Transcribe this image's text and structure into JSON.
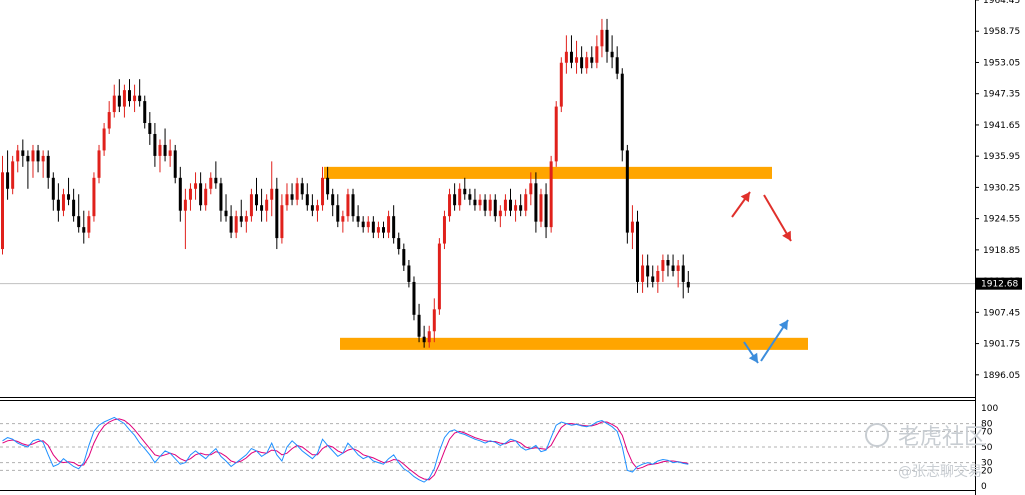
{
  "chart_data": {
    "type": "candlestick",
    "y_axis": {
      "ticks": [
        "1964.45",
        "1958.75",
        "1953.05",
        "1947.35",
        "1941.65",
        "1935.95",
        "1930.25",
        "1924.55",
        "1918.85",
        "1913.15",
        "1907.45",
        "1901.75",
        "1896.05"
      ],
      "range": [
        1892.0,
        1964.45
      ]
    },
    "current_price": {
      "value": 1912.68,
      "label": "1912.68"
    },
    "zones": [
      {
        "name": "resistance",
        "low": 1931.8,
        "high": 1934.0,
        "color": "#FFA500"
      },
      {
        "name": "support",
        "low": 1900.6,
        "high": 1902.8,
        "color": "#FFA500"
      }
    ],
    "candles": [
      [
        1919,
        1936,
        1918,
        1933
      ],
      [
        1933,
        1937,
        1928,
        1930
      ],
      [
        1930,
        1936,
        1929,
        1935
      ],
      [
        1935,
        1938,
        1933,
        1937
      ],
      [
        1937,
        1939,
        1934,
        1936
      ],
      [
        1936,
        1937,
        1930,
        1935
      ],
      [
        1935,
        1938,
        1932,
        1937
      ],
      [
        1937,
        1938,
        1933,
        1935
      ],
      [
        1935,
        1937,
        1932,
        1936
      ],
      [
        1936,
        1937,
        1930,
        1932
      ],
      [
        1932,
        1933,
        1926,
        1928
      ],
      [
        1928,
        1931,
        1924,
        1926
      ],
      [
        1926,
        1930,
        1925,
        1929
      ],
      [
        1929,
        1932,
        1927,
        1928
      ],
      [
        1928,
        1930,
        1924,
        1925
      ],
      [
        1925,
        1929,
        1922,
        1923
      ],
      [
        1923,
        1926,
        1920,
        1922
      ],
      [
        1922,
        1926,
        1921,
        1925
      ],
      [
        1925,
        1933,
        1924,
        1932
      ],
      [
        1932,
        1938,
        1931,
        1937
      ],
      [
        1937,
        1942,
        1936,
        1941
      ],
      [
        1941,
        1946,
        1940,
        1944
      ],
      [
        1944,
        1949,
        1943,
        1947
      ],
      [
        1947,
        1950,
        1944,
        1945
      ],
      [
        1945,
        1949,
        1943,
        1948
      ],
      [
        1948,
        1950,
        1945,
        1946
      ],
      [
        1946,
        1949,
        1944,
        1947
      ],
      [
        1947,
        1950,
        1945,
        1946
      ],
      [
        1946,
        1947,
        1941,
        1942
      ],
      [
        1942,
        1944,
        1938,
        1940
      ],
      [
        1940,
        1942,
        1934,
        1936
      ],
      [
        1936,
        1939,
        1933,
        1938
      ],
      [
        1938,
        1941,
        1935,
        1936
      ],
      [
        1936,
        1939,
        1934,
        1937
      ],
      [
        1937,
        1938,
        1931,
        1932
      ],
      [
        1932,
        1934,
        1924,
        1926
      ],
      [
        1926,
        1930,
        1919,
        1928
      ],
      [
        1928,
        1931,
        1926,
        1930
      ],
      [
        1930,
        1933,
        1928,
        1931
      ],
      [
        1931,
        1933,
        1926,
        1927
      ],
      [
        1927,
        1931,
        1926,
        1930
      ],
      [
        1930,
        1933,
        1929,
        1932
      ],
      [
        1932,
        1935,
        1930,
        1931
      ],
      [
        1931,
        1932,
        1924,
        1926
      ],
      [
        1926,
        1929,
        1924,
        1925
      ],
      [
        1925,
        1927,
        1921,
        1922
      ],
      [
        1922,
        1926,
        1921,
        1925
      ],
      [
        1925,
        1928,
        1923,
        1924
      ],
      [
        1924,
        1926,
        1922,
        1925
      ],
      [
        1925,
        1930,
        1924,
        1929
      ],
      [
        1929,
        1932,
        1926,
        1927
      ],
      [
        1927,
        1930,
        1924,
        1926
      ],
      [
        1926,
        1929,
        1924,
        1928
      ],
      [
        1928,
        1935,
        1925,
        1930
      ],
      [
        1930,
        1932,
        1919,
        1921
      ],
      [
        1921,
        1929,
        1920,
        1927
      ],
      [
        1927,
        1931,
        1926,
        1929
      ],
      [
        1929,
        1931,
        1927,
        1928
      ],
      [
        1928,
        1932,
        1927,
        1931
      ],
      [
        1931,
        1932,
        1928,
        1929
      ],
      [
        1929,
        1931,
        1926,
        1927
      ],
      [
        1927,
        1929,
        1925,
        1926
      ],
      [
        1926,
        1928,
        1924,
        1927
      ],
      [
        1927,
        1934,
        1926,
        1932
      ],
      [
        1932,
        1934,
        1928,
        1929
      ],
      [
        1929,
        1930,
        1925,
        1927
      ],
      [
        1927,
        1929,
        1923,
        1924
      ],
      [
        1924,
        1926,
        1922,
        1925
      ],
      [
        1925,
        1930,
        1924,
        1929
      ],
      [
        1929,
        1930,
        1924,
        1925
      ],
      [
        1925,
        1927,
        1923,
        1924
      ],
      [
        1924,
        1925,
        1922,
        1923
      ],
      [
        1923,
        1925,
        1922,
        1924
      ],
      [
        1924,
        1925,
        1921,
        1922
      ],
      [
        1922,
        1924,
        1921,
        1923
      ],
      [
        1923,
        1924,
        1921,
        1922
      ],
      [
        1922,
        1926,
        1921,
        1925
      ],
      [
        1925,
        1927,
        1920,
        1921
      ],
      [
        1921,
        1922,
        1918,
        1919
      ],
      [
        1919,
        1920,
        1915,
        1916
      ],
      [
        1916,
        1917,
        1912,
        1913
      ],
      [
        1913,
        1914,
        1906,
        1907
      ],
      [
        1907,
        1909,
        1902,
        1903
      ],
      [
        1903,
        1905,
        1901,
        1902
      ],
      [
        1902,
        1905,
        1901,
        1904
      ],
      [
        1904,
        1910,
        1902,
        1908
      ],
      [
        1908,
        1921,
        1907,
        1920
      ],
      [
        1920,
        1926,
        1919,
        1925
      ],
      [
        1925,
        1930,
        1924,
        1929
      ],
      [
        1929,
        1931,
        1926,
        1927
      ],
      [
        1927,
        1931,
        1926,
        1930
      ],
      [
        1930,
        1932,
        1928,
        1929
      ],
      [
        1929,
        1930,
        1927,
        1928
      ],
      [
        1928,
        1930,
        1926,
        1927
      ],
      [
        1927,
        1929,
        1926,
        1928
      ],
      [
        1928,
        1929,
        1925,
        1926
      ],
      [
        1926,
        1929,
        1925,
        1928
      ],
      [
        1928,
        1929,
        1924,
        1925
      ],
      [
        1925,
        1927,
        1923,
        1926
      ],
      [
        1926,
        1929,
        1925,
        1928
      ],
      [
        1928,
        1930,
        1925,
        1926
      ],
      [
        1926,
        1928,
        1924,
        1927
      ],
      [
        1927,
        1929,
        1925,
        1926
      ],
      [
        1926,
        1930,
        1925,
        1929
      ],
      [
        1929,
        1933,
        1927,
        1931
      ],
      [
        1931,
        1933,
        1922,
        1924
      ],
      [
        1924,
        1930,
        1923,
        1929
      ],
      [
        1929,
        1931,
        1921,
        1923
      ],
      [
        1923,
        1936,
        1922,
        1935
      ],
      [
        1935,
        1946,
        1934,
        1945
      ],
      [
        1945,
        1954,
        1944,
        1953
      ],
      [
        1953,
        1958,
        1951,
        1955
      ],
      [
        1955,
        1958,
        1952,
        1953
      ],
      [
        1953,
        1957,
        1951,
        1954
      ],
      [
        1954,
        1956,
        1951,
        1952
      ],
      [
        1952,
        1955,
        1951,
        1954
      ],
      [
        1954,
        1956,
        1952,
        1953
      ],
      [
        1953,
        1958,
        1952,
        1956
      ],
      [
        1956,
        1961,
        1954,
        1959
      ],
      [
        1959,
        1961,
        1953,
        1955
      ],
      [
        1955,
        1958,
        1952,
        1954
      ],
      [
        1954,
        1956,
        1950,
        1951
      ],
      [
        1951,
        1952,
        1935,
        1937
      ],
      [
        1937,
        1938,
        1920,
        1922
      ],
      [
        1922,
        1927,
        1919,
        1924
      ],
      [
        1924,
        1926,
        1911,
        1913
      ],
      [
        1913,
        1918,
        1911,
        1916
      ],
      [
        1916,
        1918,
        1912,
        1914
      ],
      [
        1914,
        1916,
        1912,
        1913
      ],
      [
        1913,
        1916,
        1911,
        1915
      ],
      [
        1915,
        1918,
        1913,
        1917
      ],
      [
        1917,
        1918,
        1914,
        1916
      ],
      [
        1916,
        1918,
        1914,
        1915
      ],
      [
        1915,
        1917,
        1912,
        1916
      ],
      [
        1916,
        1918,
        1910,
        1913
      ],
      [
        1913,
        1915,
        1911,
        1912
      ]
    ],
    "oscillator": {
      "type": "stochastic",
      "levels": [
        "100",
        "80",
        "70",
        "50",
        "30",
        "20",
        "0"
      ],
      "range": [
        0,
        100
      ],
      "k_color": "#1E90FF",
      "d_color": "#E0007A",
      "k": [
        58,
        62,
        60,
        55,
        52,
        50,
        58,
        60,
        56,
        40,
        25,
        28,
        35,
        30,
        25,
        22,
        30,
        52,
        70,
        78,
        82,
        85,
        88,
        84,
        80,
        72,
        65,
        55,
        48,
        40,
        30,
        38,
        45,
        42,
        35,
        28,
        30,
        40,
        45,
        40,
        35,
        42,
        48,
        38,
        32,
        25,
        30,
        35,
        40,
        48,
        45,
        38,
        42,
        55,
        40,
        32,
        50,
        58,
        52,
        45,
        40,
        35,
        42,
        60,
        52,
        45,
        38,
        42,
        55,
        48,
        40,
        35,
        38,
        32,
        30,
        28,
        35,
        40,
        30,
        22,
        18,
        12,
        8,
        5,
        10,
        22,
        45,
        62,
        70,
        72,
        68,
        66,
        63,
        60,
        58,
        55,
        58,
        56,
        52,
        55,
        60,
        58,
        50,
        46,
        48,
        52,
        44,
        46,
        62,
        78,
        82,
        80,
        78,
        79,
        77,
        76,
        78,
        82,
        84,
        80,
        76,
        70,
        50,
        20,
        18,
        25,
        28,
        30,
        28,
        32,
        34,
        33,
        30,
        31,
        29,
        28
      ],
      "d": [
        55,
        58,
        59,
        57,
        54,
        52,
        54,
        57,
        58,
        52,
        40,
        32,
        30,
        31,
        30,
        26,
        27,
        38,
        55,
        68,
        77,
        82,
        85,
        86,
        84,
        79,
        72,
        64,
        56,
        48,
        40,
        38,
        40,
        42,
        40,
        35,
        32,
        35,
        40,
        42,
        40,
        40,
        44,
        42,
        38,
        32,
        30,
        32,
        36,
        42,
        45,
        43,
        42,
        46,
        45,
        40,
        42,
        48,
        52,
        50,
        45,
        40,
        40,
        48,
        52,
        50,
        45,
        42,
        46,
        48,
        45,
        40,
        38,
        36,
        33,
        30,
        31,
        34,
        33,
        28,
        22,
        17,
        12,
        9,
        8,
        14,
        28,
        45,
        60,
        68,
        70,
        68,
        65,
        62,
        60,
        58,
        57,
        57,
        55,
        54,
        57,
        58,
        55,
        50,
        48,
        49,
        48,
        47,
        52,
        64,
        75,
        80,
        80,
        79,
        78,
        77,
        77,
        79,
        82,
        82,
        79,
        75,
        65,
        45,
        30,
        22,
        24,
        27,
        28,
        29,
        31,
        32,
        32,
        31,
        30,
        29
      ]
    }
  },
  "arrows": [
    {
      "name": "up-arrow-resistance",
      "color": "#E0302B"
    },
    {
      "name": "down-arrow-resistance",
      "color": "#E0302B"
    },
    {
      "name": "down-arrow-support",
      "color": "#3C8DDC"
    },
    {
      "name": "up-arrow-support",
      "color": "#3C8DDC"
    }
  ],
  "watermark": {
    "brand": "老虎社区",
    "author": "@张志聊交易"
  }
}
